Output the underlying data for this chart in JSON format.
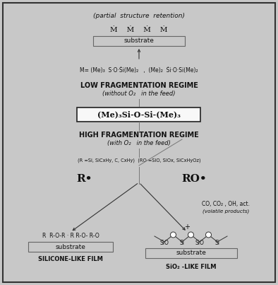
{
  "bg_color": "#c8c8c8",
  "inner_bg": "#f0f0f0",
  "text_color": "#111111",
  "title_text": "(partial  structure  retention)",
  "top_monomers": "Ṁ    Ṁ    Ṁ    Ṁ",
  "substrate_label": "substrate",
  "m_formula": "M= (Me)₃  S·O·Ṡi(Me)₂   ,  (Me)₂  Ṡi·O·Si(Me)₂",
  "low_frag_title": "LOW FRAGMENTATION REGIME",
  "low_frag_sub": "(without O₂   in the feed)",
  "main_formula": "(Me)₃Si-O-Si-(Me)₃",
  "high_frag_title": "HIGH FRAGMENTATION REGIME",
  "high_frag_sub": "(with O₂   in the feed)",
  "r_def": "(R =Si, SiCxHy, C, CxHy)  (RO =SiO, SiOx, SiCxHyOz)",
  "r_label": "R•",
  "ro_label": "RO•",
  "volatile_label": "CO, CO₂ , OH, act.",
  "volatile_sub": "(volatile products)",
  "plus_label": "+",
  "silicone_chain": "R  R-O-R · R R-O- R-O",
  "silicone_substrate": "substrate",
  "silicone_film": "SILICONE-LIKE FILM",
  "sio2_chain_atoms": [
    "SiO",
    "Si",
    "SiO",
    "Si"
  ],
  "sio2_substrate": "substrate",
  "sio2_film": "SiO₂ -LIKE FILM",
  "figsize": [
    3.94,
    4.03
  ],
  "dpi": 100
}
